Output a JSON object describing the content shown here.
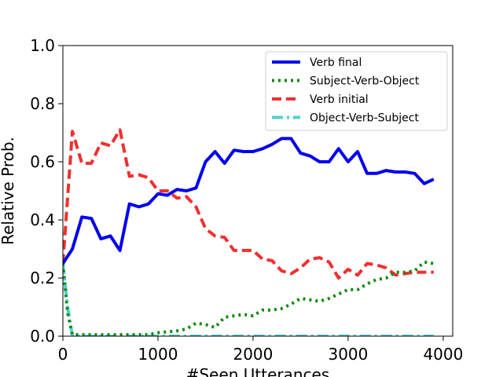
{
  "chart_data": {
    "type": "line",
    "xlabel": "#Seen Utterances",
    "ylabel": "Relative Prob.",
    "xlim": [
      0,
      4100
    ],
    "ylim": [
      0,
      1.0
    ],
    "xticks": [
      0,
      1000,
      2000,
      3000,
      4000
    ],
    "yticks": [
      0.0,
      0.2,
      0.4,
      0.6,
      0.8,
      1.0
    ],
    "grid": false,
    "legend_position": "top-right",
    "series": [
      {
        "name": "Verb final",
        "color": "#0000ee",
        "style": "solid",
        "points": [
          [
            0,
            0.25
          ],
          [
            100,
            0.3
          ],
          [
            200,
            0.41
          ],
          [
            300,
            0.405
          ],
          [
            400,
            0.335
          ],
          [
            500,
            0.345
          ],
          [
            600,
            0.295
          ],
          [
            700,
            0.455
          ],
          [
            800,
            0.445
          ],
          [
            900,
            0.455
          ],
          [
            1000,
            0.49
          ],
          [
            1100,
            0.485
          ],
          [
            1200,
            0.505
          ],
          [
            1300,
            0.5
          ],
          [
            1400,
            0.51
          ],
          [
            1500,
            0.6
          ],
          [
            1600,
            0.635
          ],
          [
            1700,
            0.595
          ],
          [
            1800,
            0.64
          ],
          [
            1900,
            0.635
          ],
          [
            2000,
            0.635
          ],
          [
            2100,
            0.645
          ],
          [
            2200,
            0.66
          ],
          [
            2300,
            0.68
          ],
          [
            2400,
            0.68
          ],
          [
            2500,
            0.63
          ],
          [
            2600,
            0.62
          ],
          [
            2700,
            0.6
          ],
          [
            2800,
            0.6
          ],
          [
            2900,
            0.645
          ],
          [
            3000,
            0.6
          ],
          [
            3100,
            0.635
          ],
          [
            3200,
            0.56
          ],
          [
            3300,
            0.56
          ],
          [
            3400,
            0.57
          ],
          [
            3500,
            0.565
          ],
          [
            3600,
            0.565
          ],
          [
            3700,
            0.56
          ],
          [
            3800,
            0.525
          ],
          [
            3900,
            0.54
          ]
        ]
      },
      {
        "name": "Subject-Verb-Object",
        "color": "#128a12",
        "style": "dotted",
        "points": [
          [
            0,
            0.25
          ],
          [
            50,
            0.08
          ],
          [
            100,
            0.005
          ],
          [
            200,
            0.005
          ],
          [
            400,
            0.005
          ],
          [
            600,
            0.005
          ],
          [
            800,
            0.005
          ],
          [
            900,
            0.005
          ],
          [
            1000,
            0.012
          ],
          [
            1100,
            0.015
          ],
          [
            1200,
            0.018
          ],
          [
            1300,
            0.025
          ],
          [
            1400,
            0.045
          ],
          [
            1500,
            0.04
          ],
          [
            1600,
            0.03
          ],
          [
            1700,
            0.065
          ],
          [
            1800,
            0.07
          ],
          [
            1900,
            0.075
          ],
          [
            2000,
            0.07
          ],
          [
            2100,
            0.09
          ],
          [
            2200,
            0.09
          ],
          [
            2300,
            0.095
          ],
          [
            2400,
            0.11
          ],
          [
            2500,
            0.13
          ],
          [
            2600,
            0.125
          ],
          [
            2700,
            0.12
          ],
          [
            2800,
            0.13
          ],
          [
            2900,
            0.145
          ],
          [
            3000,
            0.16
          ],
          [
            3100,
            0.16
          ],
          [
            3200,
            0.18
          ],
          [
            3300,
            0.195
          ],
          [
            3400,
            0.2
          ],
          [
            3500,
            0.22
          ],
          [
            3600,
            0.22
          ],
          [
            3700,
            0.225
          ],
          [
            3800,
            0.255
          ],
          [
            3900,
            0.25
          ]
        ]
      },
      {
        "name": "Verb initial",
        "color": "#f03030",
        "style": "dashed",
        "points": [
          [
            0,
            0.25
          ],
          [
            100,
            0.705
          ],
          [
            200,
            0.595
          ],
          [
            300,
            0.595
          ],
          [
            400,
            0.665
          ],
          [
            500,
            0.655
          ],
          [
            600,
            0.71
          ],
          [
            700,
            0.55
          ],
          [
            800,
            0.555
          ],
          [
            900,
            0.545
          ],
          [
            1000,
            0.5
          ],
          [
            1100,
            0.5
          ],
          [
            1200,
            0.475
          ],
          [
            1300,
            0.48
          ],
          [
            1400,
            0.445
          ],
          [
            1500,
            0.37
          ],
          [
            1600,
            0.345
          ],
          [
            1700,
            0.34
          ],
          [
            1800,
            0.295
          ],
          [
            1900,
            0.295
          ],
          [
            2000,
            0.295
          ],
          [
            2100,
            0.265
          ],
          [
            2200,
            0.26
          ],
          [
            2300,
            0.225
          ],
          [
            2400,
            0.215
          ],
          [
            2500,
            0.235
          ],
          [
            2600,
            0.265
          ],
          [
            2700,
            0.27
          ],
          [
            2800,
            0.255
          ],
          [
            2900,
            0.2
          ],
          [
            3000,
            0.23
          ],
          [
            3100,
            0.21
          ],
          [
            3200,
            0.25
          ],
          [
            3300,
            0.245
          ],
          [
            3400,
            0.235
          ],
          [
            3500,
            0.21
          ],
          [
            3600,
            0.215
          ],
          [
            3700,
            0.22
          ],
          [
            3800,
            0.22
          ],
          [
            3900,
            0.22
          ]
        ]
      },
      {
        "name": "Object-Verb-Subject",
        "color": "#4fd0d0",
        "style": "dashdot",
        "points": [
          [
            0,
            0.25
          ],
          [
            50,
            0.1
          ],
          [
            100,
            0.0
          ],
          [
            500,
            0.0
          ],
          [
            1000,
            0.0
          ],
          [
            1500,
            0.0
          ],
          [
            2000,
            0.0
          ],
          [
            2500,
            0.0
          ],
          [
            3000,
            0.0
          ],
          [
            3500,
            0.0
          ],
          [
            3900,
            0.0
          ]
        ]
      }
    ]
  }
}
